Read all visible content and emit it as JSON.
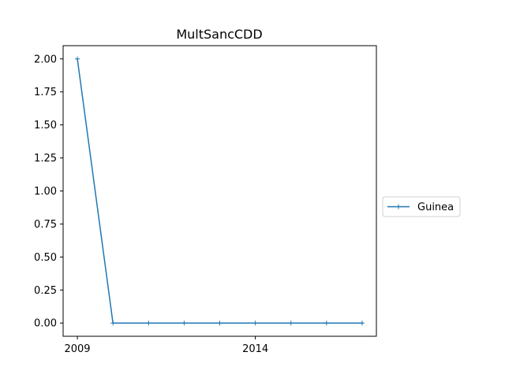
{
  "chart_data": {
    "type": "line",
    "title": "MultSancCDD",
    "xlabel": "",
    "ylabel": "",
    "x": [
      2009,
      2010,
      2011,
      2012,
      2013,
      2014,
      2015,
      2016,
      2017
    ],
    "series": [
      {
        "name": "Guinea",
        "values": [
          2,
          0,
          0,
          0,
          0,
          0,
          0,
          0,
          0
        ],
        "color": "#1f77b4",
        "marker": "plus"
      }
    ],
    "xlim": [
      2008.6,
      2017.4
    ],
    "ylim": [
      -0.1,
      2.1
    ],
    "x_ticks": [
      2009,
      2014
    ],
    "x_tick_labels": [
      "2009",
      "2014"
    ],
    "y_ticks": [
      0.0,
      0.25,
      0.5,
      0.75,
      1.0,
      1.25,
      1.5,
      1.75,
      2.0
    ],
    "y_tick_labels": [
      "0.00",
      "0.25",
      "0.50",
      "0.75",
      "1.00",
      "1.25",
      "1.50",
      "1.75",
      "2.00"
    ],
    "grid": false,
    "legend_position": "outside-right"
  }
}
